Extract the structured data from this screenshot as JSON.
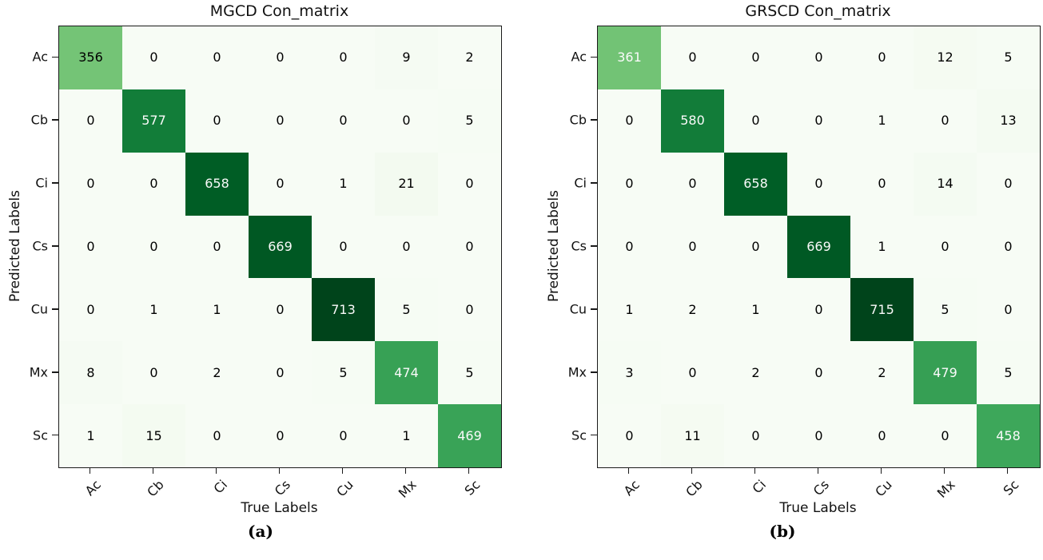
{
  "figure": {
    "background": "#ffffff"
  },
  "palette": {
    "colormap_name": "Greens",
    "greens_stops": [
      "#f7fcf5",
      "#e5f5e0",
      "#c7e9c0",
      "#a1d99b",
      "#74c476",
      "#41ab5d",
      "#238b45",
      "#006d2c",
      "#00441b"
    ],
    "spine_color": "#1a1a1a",
    "text_dark": "#000000",
    "text_light": "#fafafa"
  },
  "chart_data": [
    {
      "type": "heatmap",
      "title": "MGCD Con_matrix",
      "xlabel": "True Labels",
      "ylabel": "Predicted Labels",
      "caption": "(a)",
      "x_tick_labels": [
        "Ac",
        "Cb",
        "Ci",
        "Cs",
        "Cu",
        "Mx",
        "Sc"
      ],
      "y_tick_labels": [
        "Ac",
        "Cb",
        "Ci",
        "Cs",
        "Cu",
        "Mx",
        "Sc"
      ],
      "vmin": 0,
      "vmax": 713,
      "matrix": [
        [
          356,
          0,
          0,
          0,
          0,
          9,
          2
        ],
        [
          0,
          577,
          0,
          0,
          0,
          0,
          5
        ],
        [
          0,
          0,
          658,
          0,
          1,
          21,
          0
        ],
        [
          0,
          0,
          0,
          669,
          0,
          0,
          0
        ],
        [
          0,
          1,
          1,
          0,
          713,
          5,
          0
        ],
        [
          8,
          0,
          2,
          0,
          5,
          474,
          5
        ],
        [
          1,
          15,
          0,
          0,
          0,
          1,
          469
        ]
      ]
    },
    {
      "type": "heatmap",
      "title": "GRSCD Con_matrix",
      "xlabel": "True Labels",
      "ylabel": "Predicted Labels",
      "caption": "(b)",
      "x_tick_labels": [
        "Ac",
        "Cb",
        "Ci",
        "Cs",
        "Cu",
        "Mx",
        "Sc"
      ],
      "y_tick_labels": [
        "Ac",
        "Cb",
        "Ci",
        "Cs",
        "Cu",
        "Mx",
        "Sc"
      ],
      "vmin": 0,
      "vmax": 715,
      "matrix": [
        [
          361,
          0,
          0,
          0,
          0,
          12,
          5
        ],
        [
          0,
          580,
          0,
          0,
          1,
          0,
          13
        ],
        [
          0,
          0,
          658,
          0,
          0,
          14,
          0
        ],
        [
          0,
          0,
          0,
          669,
          1,
          0,
          0
        ],
        [
          1,
          2,
          1,
          0,
          715,
          5,
          0
        ],
        [
          3,
          0,
          2,
          0,
          2,
          479,
          5
        ],
        [
          0,
          11,
          0,
          0,
          0,
          0,
          458
        ]
      ]
    }
  ]
}
